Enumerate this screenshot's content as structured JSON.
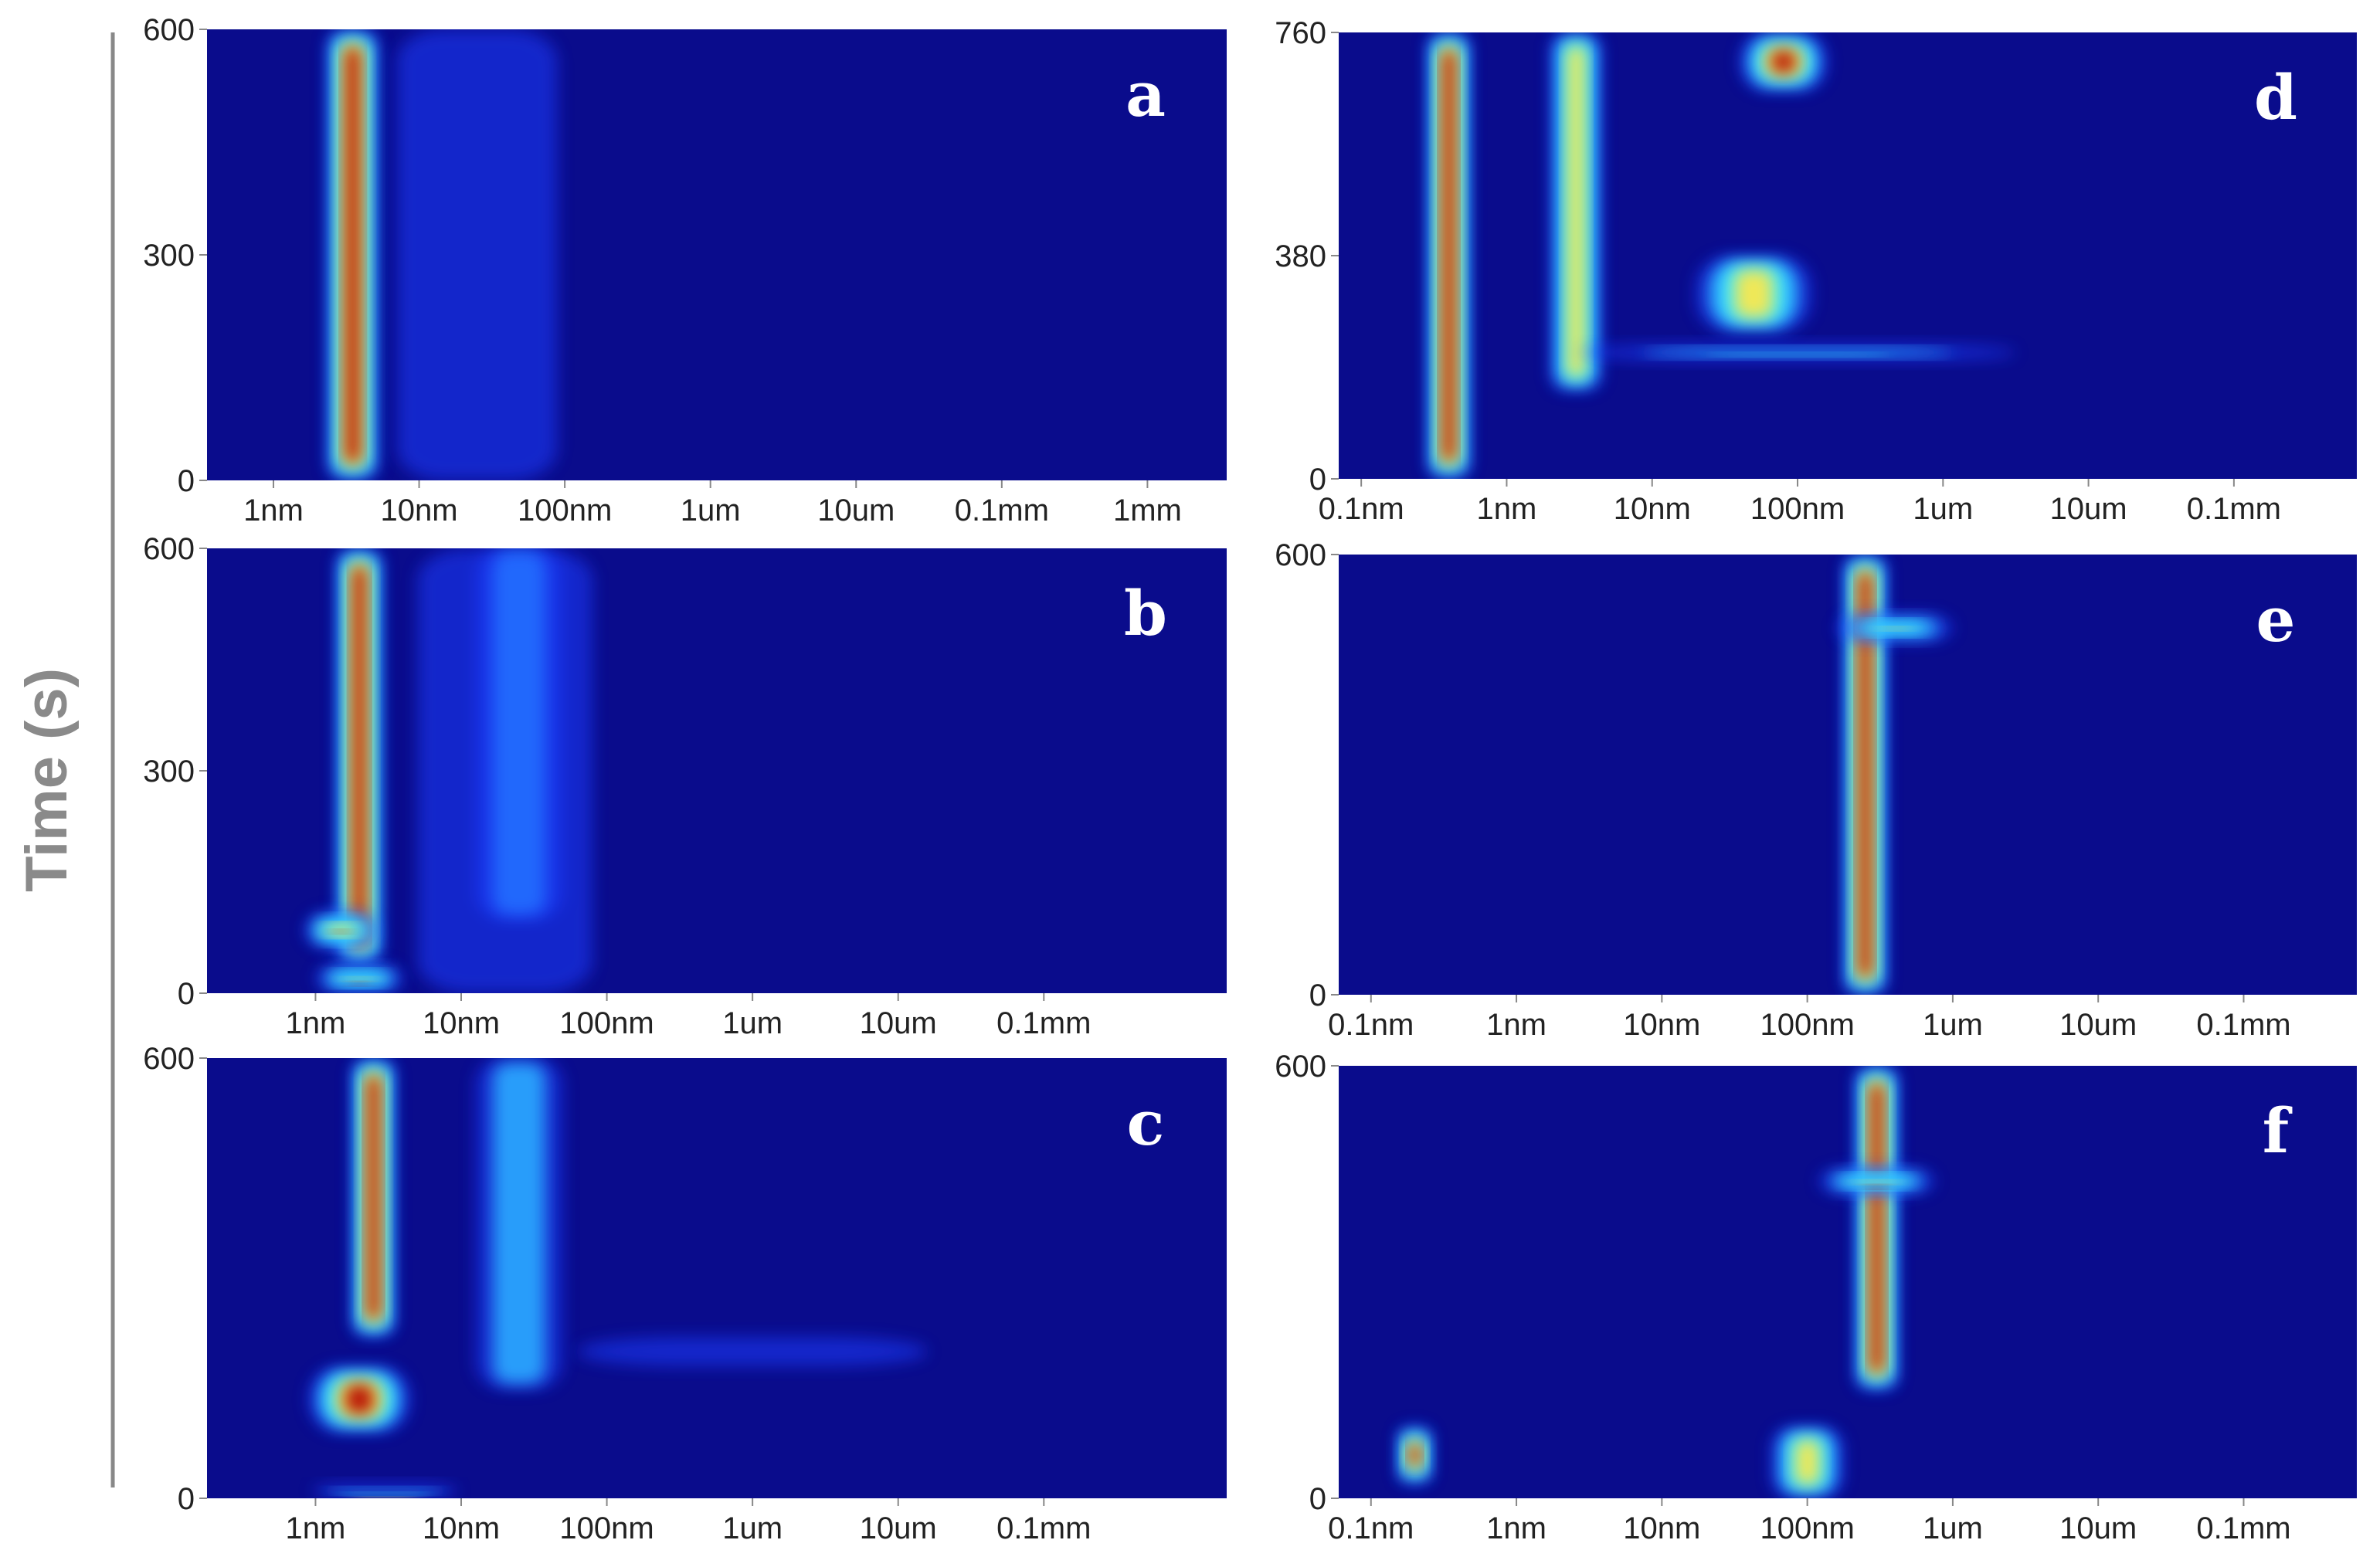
{
  "colors": {
    "background": "#0a0c8c",
    "low": "#1f3cff",
    "mid": "#2aa8ff",
    "cyan": "#3ef0ff",
    "yellow": "#ffe84a",
    "high": "#b40000",
    "axis_label": "#8a8a8a"
  },
  "chart_data": [
    {
      "panel": "a",
      "type": "heatmap",
      "title": "",
      "xlabel": "",
      "ylabel": "Time (s)",
      "x_scale": "log",
      "x_ticks": [
        "1nm",
        "10nm",
        "100nm",
        "1um",
        "10um",
        "0.1mm",
        "1mm"
      ],
      "x_tick_values_m": [
        1e-09,
        1e-08,
        1e-07,
        1e-06,
        1e-05,
        0.0001,
        0.001
      ],
      "y_ticks": [
        0,
        300,
        600
      ],
      "ylim": [
        0,
        600
      ],
      "xlim_m": [
        3.5e-10,
        0.0035
      ],
      "features": [
        {
          "x_m": 3.5e-09,
          "y0": 0,
          "y1": 600,
          "level": "high",
          "spread": 0.18
        },
        {
          "x_m": 2.5e-08,
          "y0": 0,
          "y1": 600,
          "level": "low",
          "spread": 0.55
        }
      ]
    },
    {
      "panel": "b",
      "type": "heatmap",
      "title": "",
      "xlabel": "",
      "ylabel": "Time (s)",
      "x_scale": "log",
      "x_ticks": [
        "1nm",
        "10nm",
        "100nm",
        "1um",
        "10um",
        "0.1mm"
      ],
      "x_tick_values_m": [
        1e-09,
        1e-08,
        1e-07,
        1e-06,
        1e-05,
        0.0001
      ],
      "y_ticks": [
        0,
        300,
        600
      ],
      "ylim": [
        0,
        600
      ],
      "xlim_m": [
        1.8e-10,
        0.0018
      ],
      "features": [
        {
          "x_m": 2e-09,
          "y0": 40,
          "y1": 600,
          "level": "high",
          "spread": 0.16
        },
        {
          "x_m": 1.5e-09,
          "y0": 60,
          "y1": 110,
          "level": "high",
          "spread": 0.25
        },
        {
          "x_m": 2e-09,
          "y0": 0,
          "y1": 40,
          "level": "high",
          "spread": 0.3
        },
        {
          "x_m": 2.5e-08,
          "y0": 100,
          "y1": 600,
          "level": "mid",
          "spread": 0.3
        },
        {
          "x_m": 2e-08,
          "y0": 0,
          "y1": 600,
          "level": "low",
          "spread": 0.6
        }
      ]
    },
    {
      "panel": "c",
      "type": "heatmap",
      "title": "",
      "xlabel": "",
      "ylabel": "Time (s)",
      "x_scale": "log",
      "x_ticks": [
        "1nm",
        "10nm",
        "100nm",
        "1um",
        "10um",
        "0.1mm"
      ],
      "x_tick_values_m": [
        1e-09,
        1e-08,
        1e-07,
        1e-06,
        1e-05,
        0.0001
      ],
      "y_ticks": [
        0,
        600
      ],
      "ylim": [
        0,
        600
      ],
      "xlim_m": [
        1.8e-10,
        0.0018
      ],
      "features": [
        {
          "x_m": 2.5e-09,
          "y0": 220,
          "y1": 600,
          "level": "high",
          "spread": 0.15
        },
        {
          "x_m": 2e-09,
          "y0": 90,
          "y1": 180,
          "level": "high",
          "spread": 0.35
        },
        {
          "x_m": 3e-09,
          "y0": 0,
          "y1": 20,
          "level": "high",
          "spread": 0.5
        },
        {
          "x_m": 2.5e-08,
          "y0": 150,
          "y1": 600,
          "level": "mid",
          "spread": 0.3
        },
        {
          "x_m": 1e-06,
          "y0": 180,
          "y1": 220,
          "level": "low",
          "spread": 1.2
        }
      ]
    },
    {
      "panel": "d",
      "type": "heatmap",
      "title": "",
      "xlabel": "",
      "ylabel": "Time (s)",
      "x_scale": "log",
      "x_ticks": [
        "0.1nm",
        "1nm",
        "10nm",
        "100nm",
        "1um",
        "10um",
        "0.1mm"
      ],
      "x_tick_values_m": [
        1e-10,
        1e-09,
        1e-08,
        1e-07,
        1e-06,
        1e-05,
        0.0001
      ],
      "y_ticks": [
        0,
        380,
        760
      ],
      "ylim": [
        0,
        760
      ],
      "xlim_m": [
        7e-11,
        0.0007
      ],
      "features": [
        {
          "x_m": 4e-10,
          "y0": 0,
          "y1": 760,
          "level": "high",
          "spread": 0.15
        },
        {
          "x_m": 3e-09,
          "y0": 150,
          "y1": 760,
          "level": "yellow",
          "spread": 0.18
        },
        {
          "x_m": 8e-08,
          "y0": 660,
          "y1": 760,
          "level": "high",
          "spread": 0.3
        },
        {
          "x_m": 5e-08,
          "y0": 250,
          "y1": 380,
          "level": "yellow",
          "spread": 0.4
        },
        {
          "x_m": 1e-07,
          "y0": 200,
          "y1": 230,
          "level": "cyan",
          "spread": 1.5
        }
      ]
    },
    {
      "panel": "e",
      "type": "heatmap",
      "title": "",
      "xlabel": "",
      "ylabel": "Time (s)",
      "x_scale": "log",
      "x_ticks": [
        "0.1nm",
        "1nm",
        "10nm",
        "100nm",
        "1um",
        "10um",
        "0.1mm"
      ],
      "x_tick_values_m": [
        1e-10,
        1e-09,
        1e-08,
        1e-07,
        1e-06,
        1e-05,
        0.0001
      ],
      "y_ticks": [
        0,
        600
      ],
      "ylim": [
        0,
        600
      ],
      "xlim_m": [
        6e-11,
        0.0006
      ],
      "features": [
        {
          "x_m": 2.5e-07,
          "y0": 0,
          "y1": 600,
          "level": "high",
          "spread": 0.15
        },
        {
          "x_m": 4e-07,
          "y0": 480,
          "y1": 520,
          "level": "yellow",
          "spread": 0.4
        }
      ]
    },
    {
      "panel": "f",
      "type": "heatmap",
      "title": "",
      "xlabel": "",
      "ylabel": "Time (s)",
      "x_scale": "log",
      "x_ticks": [
        "0.1nm",
        "1nm",
        "10nm",
        "100nm",
        "1um",
        "10um",
        "0.1mm"
      ],
      "x_tick_values_m": [
        1e-10,
        1e-09,
        1e-08,
        1e-07,
        1e-06,
        1e-05,
        0.0001
      ],
      "y_ticks": [
        0,
        600
      ],
      "ylim": [
        0,
        600
      ],
      "xlim_m": [
        6e-11,
        0.0006
      ],
      "features": [
        {
          "x_m": 3e-07,
          "y0": 150,
          "y1": 600,
          "level": "high",
          "spread": 0.15
        },
        {
          "x_m": 3e-07,
          "y0": 420,
          "y1": 460,
          "level": "high",
          "spread": 0.4
        },
        {
          "x_m": 1e-07,
          "y0": 0,
          "y1": 100,
          "level": "yellow",
          "spread": 0.25
        },
        {
          "x_m": 2e-10,
          "y0": 20,
          "y1": 100,
          "level": "high",
          "spread": 0.12
        }
      ]
    }
  ],
  "figure": {
    "ylabel": "Time (s)",
    "panel_letters": [
      "a",
      "b",
      "c",
      "d",
      "e",
      "f"
    ]
  }
}
